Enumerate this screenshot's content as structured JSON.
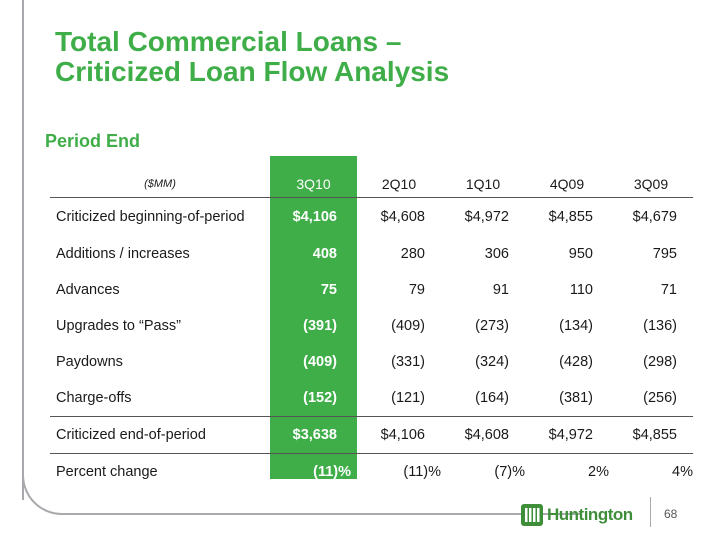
{
  "title": {
    "line1": "Total Commercial Loans –",
    "line2": "Criticized Loan Flow Analysis"
  },
  "subtitle": "Period End",
  "table": {
    "units": "($MM)",
    "columns": [
      "3Q10",
      "2Q10",
      "1Q10",
      "4Q09",
      "3Q09"
    ],
    "rows": [
      {
        "label": "Criticized beginning-of-period",
        "values": [
          "$4,106",
          "$4,608",
          "$4,972",
          "$4,855",
          "$4,679"
        ]
      },
      {
        "label": "Additions / increases",
        "values": [
          "408",
          "280",
          "306",
          "950",
          "795"
        ]
      },
      {
        "label": "Advances",
        "values": [
          "75",
          "79",
          "91",
          "110",
          "71"
        ]
      },
      {
        "label": "Upgrades to “Pass”",
        "values": [
          "(391)",
          "(409)",
          "(273)",
          "(134)",
          "(136)"
        ]
      },
      {
        "label": "Paydowns",
        "values": [
          "(409)",
          "(331)",
          "(324)",
          "(428)",
          "(298)"
        ]
      },
      {
        "label": "Charge-offs",
        "values": [
          "(152)",
          "(121)",
          "(164)",
          "(381)",
          "(256)"
        ]
      },
      {
        "label": "Criticized end-of-period",
        "values": [
          "$3,638",
          "$4,106",
          "$4,608",
          "$4,972",
          "$4,855"
        ]
      },
      {
        "label": "Percent change",
        "values": [
          "(11)%",
          "(11)%",
          "(7)%",
          "2%",
          "4%"
        ]
      }
    ]
  },
  "footer": {
    "brand": "Huntington",
    "page_number": "68",
    "brand_color": "#3f8f3a"
  },
  "colors": {
    "accent": "#3fae49"
  }
}
